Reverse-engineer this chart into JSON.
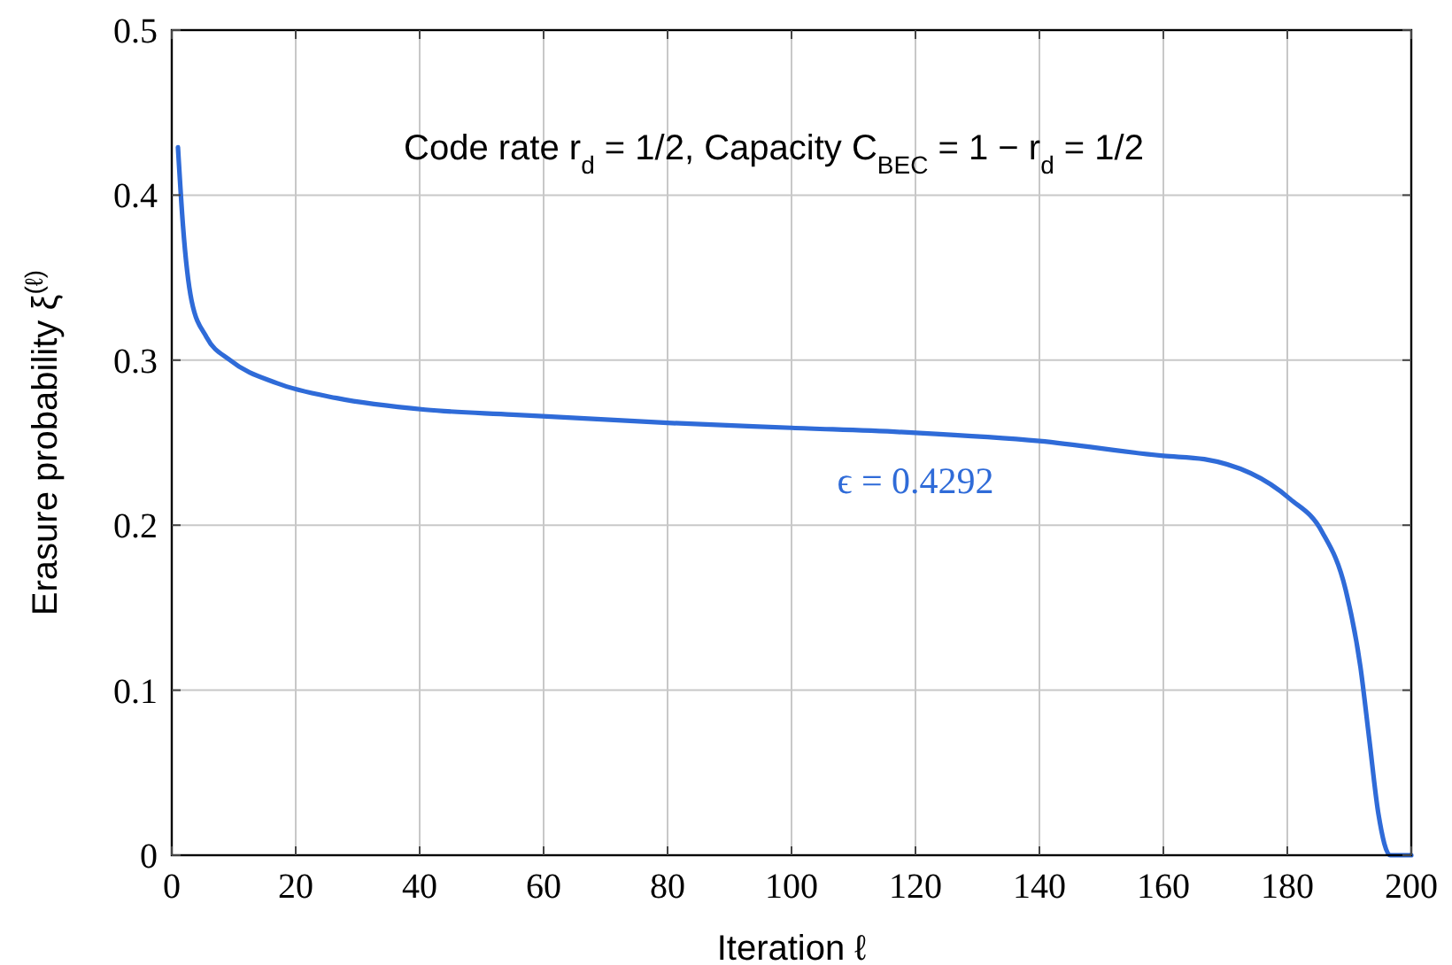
{
  "chart_data": {
    "type": "line",
    "xlabel": "Iteration ℓ",
    "ylabel": "Erasure probability ξ$^{(ℓ)}$",
    "annotations": [
      "Code rate r$_{d}$ = 1/2, Capacity C$_{BEC}$ = 1 − r$_{d}$ = 1/2"
    ],
    "series": [
      {
        "name": "ϵ = 0.4292",
        "color": "#2f6bd8",
        "x": [
          1,
          1.8,
          3.2,
          5.6,
          9.4,
          17,
          26.6,
          40.9,
          55,
          80,
          100,
          120,
          140,
          160,
          166.6,
          180.4,
          185.6,
          189.4,
          191.8,
          193.2,
          194.7,
          196.6,
          200
        ],
        "values": [
          0.429,
          0.382,
          0.336,
          0.314,
          0.3,
          0.286,
          0.277,
          0.27,
          0.267,
          0.262,
          0.259,
          0.256,
          0.251,
          0.242,
          0.24,
          0.216,
          0.196,
          0.161,
          0.114,
          0.071,
          0.025,
          0,
          0
        ]
      }
    ],
    "xlim": [
      0,
      200
    ],
    "ylim": [
      0,
      0.5
    ],
    "xticks": [
      0,
      20,
      40,
      60,
      80,
      100,
      120,
      140,
      160,
      180,
      200
    ],
    "yticks": [
      0,
      0.1,
      0.2,
      0.3,
      0.4,
      0.5
    ],
    "grid": true,
    "marker": "none",
    "line_style": "solid"
  }
}
